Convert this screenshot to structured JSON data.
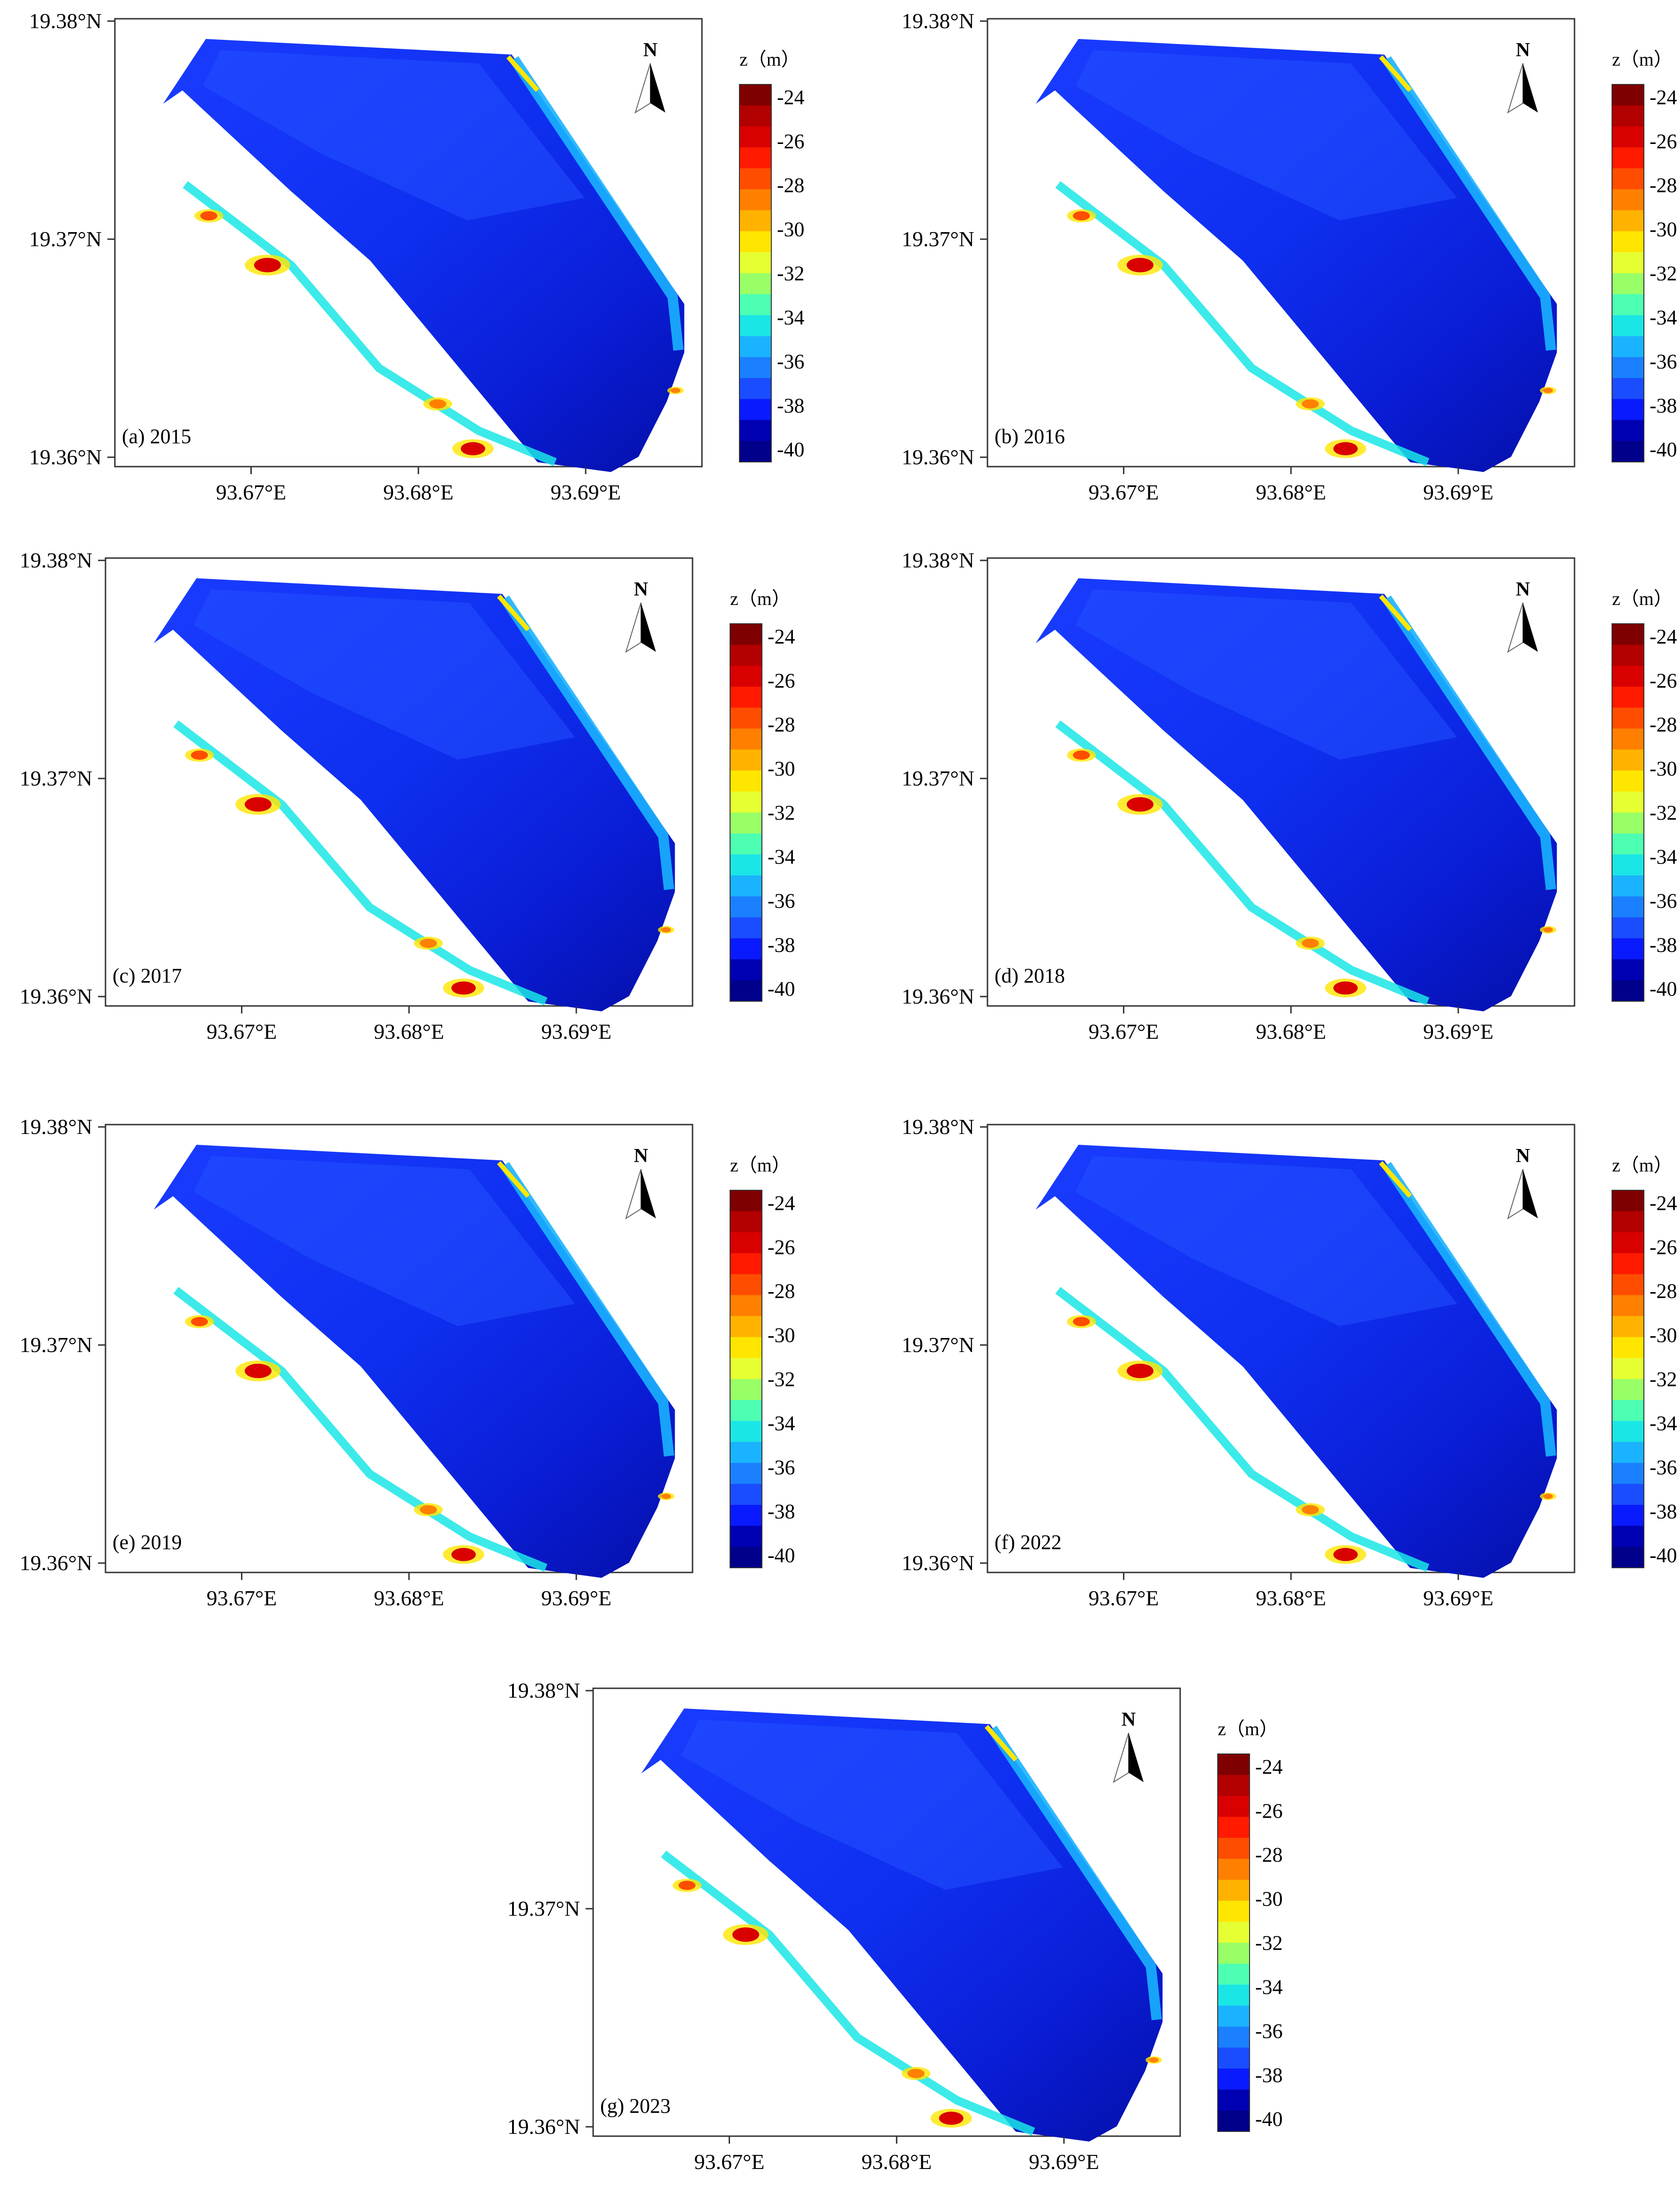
{
  "colorbar": {
    "title": "z（m）",
    "levels": [
      -24,
      -25,
      -26,
      -27,
      -28,
      -29,
      -30,
      -31,
      -32,
      -33,
      -34,
      -35,
      -36,
      -37,
      -38,
      -39,
      -40
    ],
    "tick_labels": [
      "-24",
      "-26",
      "-28",
      "-30",
      "-32",
      "-34",
      "-36",
      "-38",
      "-40"
    ],
    "colors": [
      "#7f0000",
      "#b30000",
      "#d90000",
      "#ff1a00",
      "#ff4d00",
      "#ff8000",
      "#ffb300",
      "#ffe600",
      "#e6ff33",
      "#99ff66",
      "#4dffb3",
      "#1ae6e6",
      "#1ab3ff",
      "#1a80ff",
      "#1a4dff",
      "#0a1aff",
      "#0000b3",
      "#00008b"
    ]
  },
  "axes": {
    "x_ticks": [
      "93.67°E",
      "93.68°E",
      "93.69°E"
    ],
    "y_ticks": [
      "19.38°N",
      "19.37°N",
      "19.36°N"
    ]
  },
  "north_arrow_label": "N",
  "panels": [
    {
      "label": "(a) 2015"
    },
    {
      "label": "(b) 2016"
    },
    {
      "label": "(c) 2017"
    },
    {
      "label": "(d) 2018"
    },
    {
      "label": "(e) 2019"
    },
    {
      "label": "(f) 2022"
    },
    {
      "label": "(g) 2023"
    }
  ]
}
